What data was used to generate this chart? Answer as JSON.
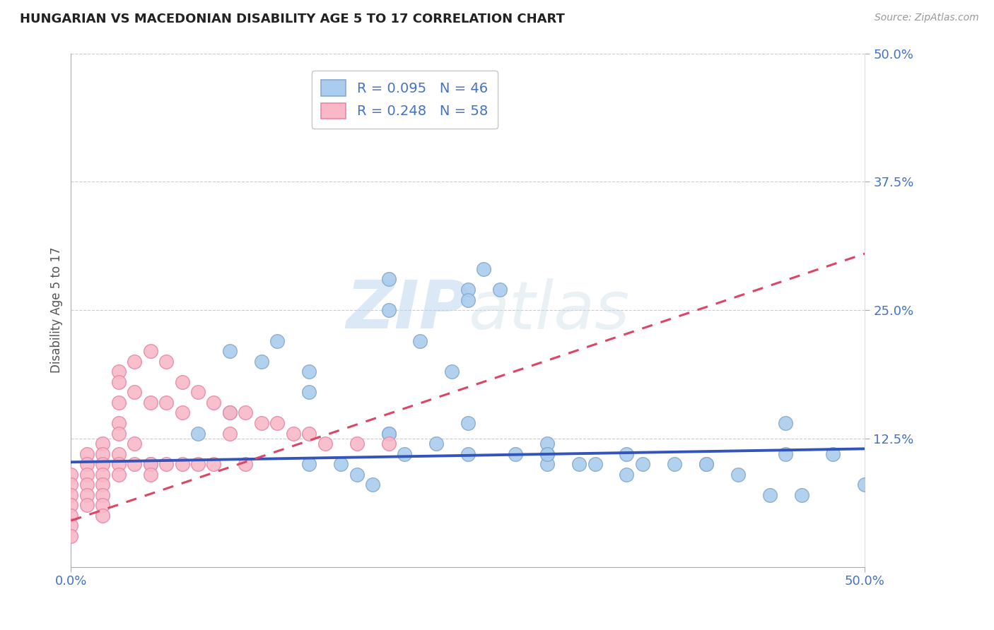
{
  "title": "HUNGARIAN VS MACEDONIAN DISABILITY AGE 5 TO 17 CORRELATION CHART",
  "source_text": "Source: ZipAtlas.com",
  "ylabel": "Disability Age 5 to 17",
  "xlim": [
    0.0,
    0.5
  ],
  "ylim": [
    0.0,
    0.5
  ],
  "ytick_values": [
    0.125,
    0.25,
    0.375,
    0.5
  ],
  "ytick_labels": [
    "12.5%",
    "25.0%",
    "37.5%",
    "50.0%"
  ],
  "grid_color": "#cccccc",
  "background_color": "#ffffff",
  "hungarian_color": "#aaccee",
  "macedonian_color": "#f8b8c8",
  "hungarian_edge_color": "#88aacc",
  "macedonian_edge_color": "#e888aa",
  "trend_blue": "#3355bb",
  "trend_pink": "#dd4466",
  "legend_text_color": "#4472c4",
  "legend_N_color": "#4472c4",
  "watermark_color": "#c8ddf0",
  "hungarian_x": [
    0.05,
    0.08,
    0.1,
    0.12,
    0.13,
    0.15,
    0.15,
    0.17,
    0.18,
    0.19,
    0.2,
    0.2,
    0.21,
    0.22,
    0.23,
    0.24,
    0.25,
    0.25,
    0.26,
    0.27,
    0.28,
    0.3,
    0.3,
    0.32,
    0.33,
    0.35,
    0.36,
    0.38,
    0.4,
    0.42,
    0.44,
    0.45,
    0.46,
    0.48,
    0.5,
    0.1,
    0.15,
    0.2,
    0.25,
    0.3,
    0.35,
    0.4,
    0.45,
    0.2,
    0.25,
    0.3
  ],
  "hungarian_y": [
    0.1,
    0.13,
    0.21,
    0.2,
    0.22,
    0.1,
    0.19,
    0.1,
    0.09,
    0.08,
    0.25,
    0.13,
    0.11,
    0.22,
    0.12,
    0.19,
    0.27,
    0.11,
    0.29,
    0.27,
    0.11,
    0.12,
    0.11,
    0.1,
    0.1,
    0.11,
    0.1,
    0.1,
    0.1,
    0.09,
    0.07,
    0.11,
    0.07,
    0.11,
    0.08,
    0.15,
    0.17,
    0.13,
    0.14,
    0.1,
    0.09,
    0.1,
    0.14,
    0.28,
    0.26,
    0.11
  ],
  "macedonian_x": [
    0.0,
    0.0,
    0.0,
    0.0,
    0.0,
    0.0,
    0.0,
    0.01,
    0.01,
    0.01,
    0.01,
    0.01,
    0.01,
    0.02,
    0.02,
    0.02,
    0.02,
    0.02,
    0.02,
    0.02,
    0.02,
    0.03,
    0.03,
    0.03,
    0.03,
    0.03,
    0.03,
    0.03,
    0.03,
    0.04,
    0.04,
    0.04,
    0.04,
    0.05,
    0.05,
    0.05,
    0.05,
    0.06,
    0.06,
    0.06,
    0.07,
    0.07,
    0.07,
    0.08,
    0.08,
    0.09,
    0.09,
    0.1,
    0.1,
    0.11,
    0.11,
    0.12,
    0.13,
    0.14,
    0.15,
    0.16,
    0.18,
    0.2
  ],
  "macedonian_y": [
    0.09,
    0.08,
    0.07,
    0.06,
    0.05,
    0.04,
    0.03,
    0.11,
    0.1,
    0.09,
    0.08,
    0.07,
    0.06,
    0.12,
    0.11,
    0.1,
    0.09,
    0.08,
    0.07,
    0.06,
    0.05,
    0.19,
    0.18,
    0.16,
    0.14,
    0.13,
    0.11,
    0.1,
    0.09,
    0.2,
    0.17,
    0.12,
    0.1,
    0.21,
    0.16,
    0.1,
    0.09,
    0.2,
    0.16,
    0.1,
    0.18,
    0.15,
    0.1,
    0.17,
    0.1,
    0.16,
    0.1,
    0.15,
    0.13,
    0.15,
    0.1,
    0.14,
    0.14,
    0.13,
    0.13,
    0.12,
    0.12,
    0.12
  ],
  "trend_blue_intercept": 0.102,
  "trend_blue_slope": 0.026,
  "trend_pink_intercept": 0.045,
  "trend_pink_slope": 0.52
}
